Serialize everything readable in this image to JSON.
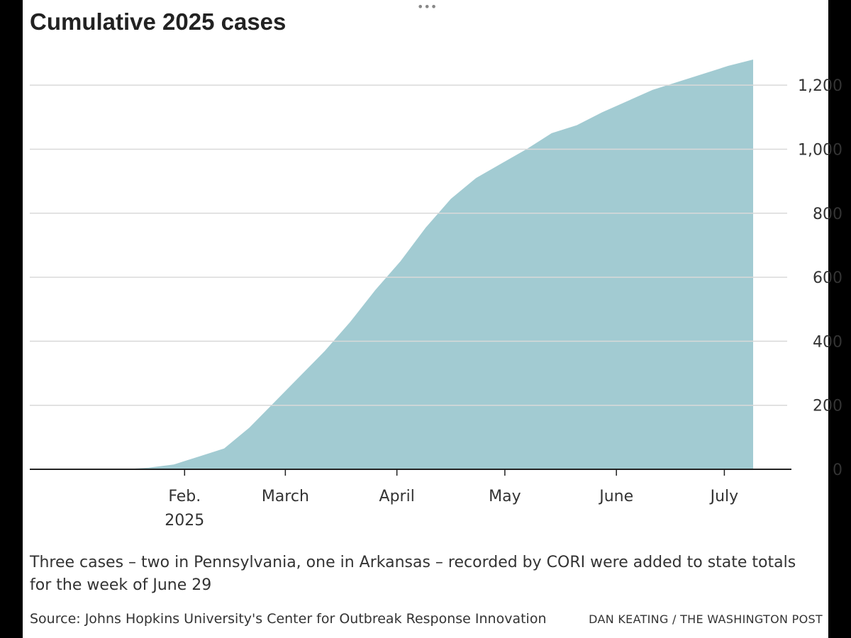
{
  "header": {
    "title": "Cumulative 2025 cases"
  },
  "drag_handle": "•••",
  "chart_data": {
    "type": "area",
    "title": "Cumulative 2025 cases",
    "xlabel": "",
    "ylabel": "",
    "x": [
      "2025-01-08",
      "2025-01-15",
      "2025-01-22",
      "2025-01-29",
      "2025-02-05",
      "2025-02-12",
      "2025-02-19",
      "2025-02-26",
      "2025-03-05",
      "2025-03-12",
      "2025-03-19",
      "2025-03-26",
      "2025-04-02",
      "2025-04-09",
      "2025-04-16",
      "2025-04-23",
      "2025-04-30",
      "2025-05-07",
      "2025-05-14",
      "2025-05-21",
      "2025-05-28",
      "2025-06-04",
      "2025-06-11",
      "2025-06-18",
      "2025-06-25",
      "2025-07-02",
      "2025-07-09"
    ],
    "values": [
      0,
      0,
      5,
      15,
      40,
      65,
      130,
      210,
      290,
      370,
      460,
      560,
      650,
      755,
      845,
      910,
      955,
      1000,
      1050,
      1075,
      1115,
      1150,
      1185,
      1210,
      1235,
      1260,
      1280
    ],
    "x_ticks": [
      {
        "date": "2025-02-01",
        "label": "Feb.",
        "label2": "2025"
      },
      {
        "date": "2025-03-01",
        "label": "March"
      },
      {
        "date": "2025-04-01",
        "label": "April"
      },
      {
        "date": "2025-05-01",
        "label": "May"
      },
      {
        "date": "2025-06-01",
        "label": "June"
      },
      {
        "date": "2025-07-01",
        "label": "July"
      }
    ],
    "y_ticks": [
      0,
      200,
      400,
      600,
      800,
      1000,
      1200
    ],
    "ylim": [
      0,
      1300
    ],
    "xlim": [
      "2025-01-01",
      "2025-07-09"
    ],
    "grid": true,
    "fill_color": "#a2cbd2",
    "y_axis_side": "right"
  },
  "note": "Three cases – two in Pennsylvania, one in Arkansas – recorded by CORI were added to state totals for the week of June 29",
  "source": "Source: Johns Hopkins University's Center for Outbreak Response Innovation",
  "credit": "DAN KEATING / THE WASHINGTON POST"
}
